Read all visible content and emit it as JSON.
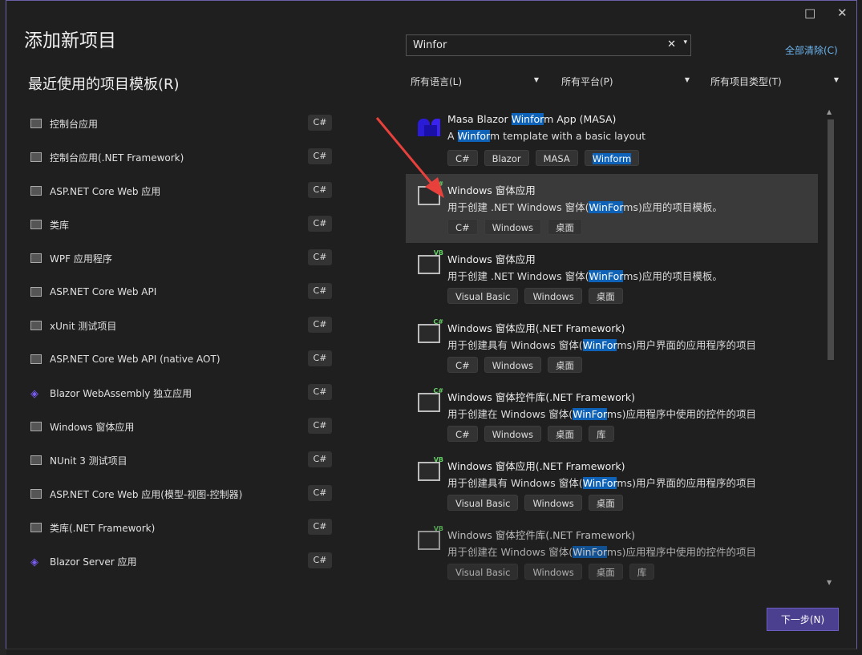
{
  "dialog": {
    "title": "添加新项目",
    "recent_heading": "最近使用的项目模板(R)",
    "maximize_icon": "□",
    "close_icon": "✕"
  },
  "search": {
    "value": "Winfor",
    "clear_icon": "✕",
    "dropdown_icon": "▾"
  },
  "clear_all": "全部清除(C)",
  "filters": [
    {
      "label": "所有语言(L)"
    },
    {
      "label": "所有平台(P)"
    },
    {
      "label": "所有项目类型(T)"
    }
  ],
  "recent": [
    {
      "name": "控制台应用",
      "lang": "C#"
    },
    {
      "name": "控制台应用(.NET Framework)",
      "lang": "C#"
    },
    {
      "name": "ASP.NET Core Web 应用",
      "lang": "C#"
    },
    {
      "name": "类库",
      "lang": "C#"
    },
    {
      "name": "WPF 应用程序",
      "lang": "C#"
    },
    {
      "name": "ASP.NET Core Web API",
      "lang": "C#"
    },
    {
      "name": "xUnit 测试项目",
      "lang": "C#"
    },
    {
      "name": "ASP.NET Core Web API (native AOT)",
      "lang": "C#"
    },
    {
      "name": "Blazor WebAssembly 独立应用",
      "lang": "C#"
    },
    {
      "name": "Windows 窗体应用",
      "lang": "C#"
    },
    {
      "name": "NUnit 3 测试项目",
      "lang": "C#"
    },
    {
      "name": "ASP.NET Core Web 应用(模型-视图-控制器)",
      "lang": "C#"
    },
    {
      "name": "类库(.NET Framework)",
      "lang": "C#"
    },
    {
      "name": "Blazor Server 应用",
      "lang": "C#"
    }
  ],
  "results": [
    {
      "name_pre": "Masa Blazor ",
      "name_hl": "Winfor",
      "name_post": "m App (MASA)",
      "desc_pre": "A ",
      "desc_hl": "Winfor",
      "desc_post": "m template with a basic layout",
      "tags": [
        "C#",
        "Blazor",
        "MASA",
        "Winform"
      ],
      "icon": "masa"
    },
    {
      "name_pre": "Windows 窗体应用",
      "name_hl": "",
      "name_post": "",
      "desc_pre": "用于创建 .NET Windows 窗体(",
      "desc_hl": "WinFor",
      "desc_post": "ms)应用的项目模板。",
      "tags": [
        "C#",
        "Windows",
        "桌面"
      ],
      "icon": "C#",
      "selected": true
    },
    {
      "name_pre": "Windows 窗体应用",
      "name_hl": "",
      "name_post": "",
      "desc_pre": "用于创建 .NET Windows 窗体(",
      "desc_hl": "WinFor",
      "desc_post": "ms)应用的项目模板。",
      "tags": [
        "Visual Basic",
        "Windows",
        "桌面"
      ],
      "icon": "VB"
    },
    {
      "name_pre": "Windows 窗体应用(.NET Framework)",
      "name_hl": "",
      "name_post": "",
      "desc_pre": "用于创建具有 Windows 窗体(",
      "desc_hl": "WinFor",
      "desc_post": "ms)用户界面的应用程序的项目",
      "tags": [
        "C#",
        "Windows",
        "桌面"
      ],
      "icon": "C#"
    },
    {
      "name_pre": "Windows 窗体控件库(.NET Framework)",
      "name_hl": "",
      "name_post": "",
      "desc_pre": "用于创建在 Windows 窗体(",
      "desc_hl": "WinFor",
      "desc_post": "ms)应用程序中使用的控件的项目",
      "tags": [
        "C#",
        "Windows",
        "桌面",
        "库"
      ],
      "icon": "C#"
    },
    {
      "name_pre": "Windows 窗体应用(.NET Framework)",
      "name_hl": "",
      "name_post": "",
      "desc_pre": "用于创建具有 Windows 窗体(",
      "desc_hl": "WinFor",
      "desc_post": "ms)用户界面的应用程序的项目",
      "tags": [
        "Visual Basic",
        "Windows",
        "桌面"
      ],
      "icon": "VB"
    },
    {
      "name_pre": "Windows 窗体控件库(.NET Framework)",
      "name_hl": "",
      "name_post": "",
      "desc_pre": "用于创建在 Windows 窗体(",
      "desc_hl": "WinFor",
      "desc_post": "ms)应用程序中使用的控件的项目",
      "tags": [
        "Visual Basic",
        "Windows",
        "桌面",
        "库"
      ],
      "icon": "VB"
    }
  ],
  "next_button": "下一步(N)",
  "colors": {
    "accent": "#4b3f8f",
    "highlight": "#0e62b8",
    "link": "#6cb4ee",
    "annotation_arrow": "#e8413c"
  }
}
